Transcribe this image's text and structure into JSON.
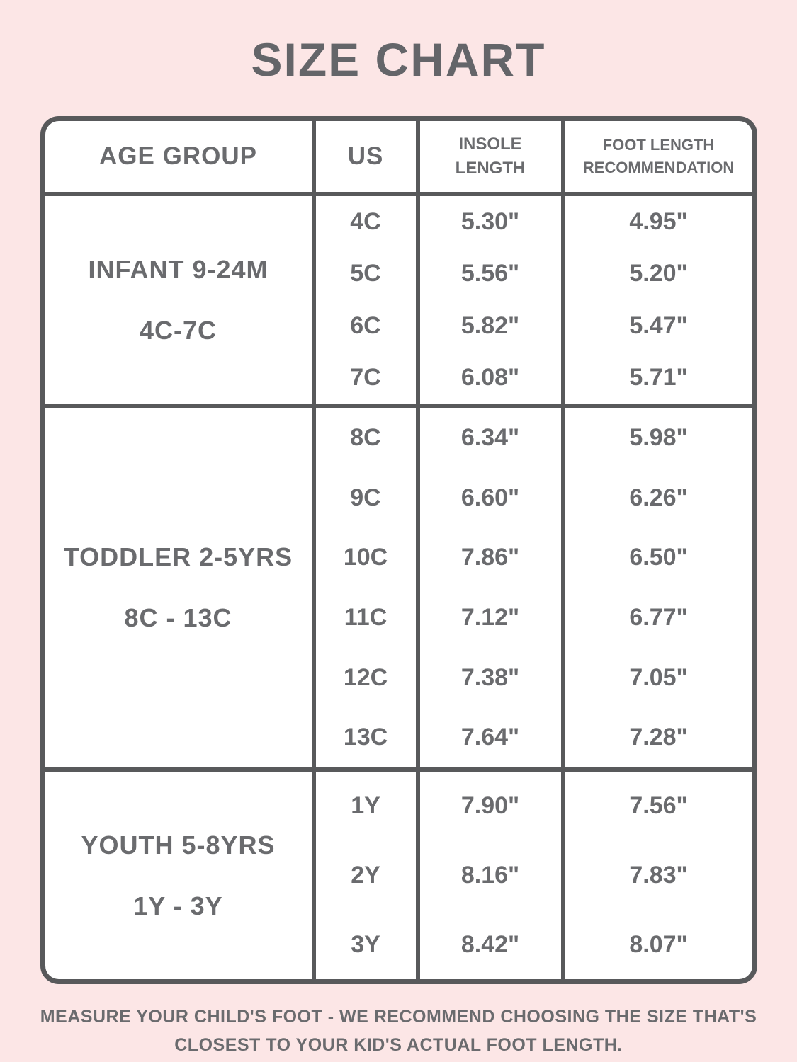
{
  "chart_data": {
    "type": "table",
    "title": "SIZE CHART",
    "columns": [
      "AGE GROUP",
      "US",
      "INSOLE LENGTH",
      "FOOT LENGTH RECOMMENDATION"
    ],
    "groups": [
      {
        "age_group": "INFANT 9-24M",
        "size_range": "4C-7C",
        "rows": [
          {
            "us": "4C",
            "insole_length": "5.30\"",
            "foot_length_recommendation": "4.95\""
          },
          {
            "us": "5C",
            "insole_length": "5.56\"",
            "foot_length_recommendation": "5.20\""
          },
          {
            "us": "6C",
            "insole_length": "5.82\"",
            "foot_length_recommendation": "5.47\""
          },
          {
            "us": "7C",
            "insole_length": "6.08\"",
            "foot_length_recommendation": "5.71\""
          }
        ]
      },
      {
        "age_group": "TODDLER 2-5YRS",
        "size_range": "8C - 13C",
        "rows": [
          {
            "us": "8C",
            "insole_length": "6.34\"",
            "foot_length_recommendation": "5.98\""
          },
          {
            "us": "9C",
            "insole_length": "6.60\"",
            "foot_length_recommendation": "6.26\""
          },
          {
            "us": "10C",
            "insole_length": "7.86\"",
            "foot_length_recommendation": "6.50\""
          },
          {
            "us": "11C",
            "insole_length": "7.12\"",
            "foot_length_recommendation": "6.77\""
          },
          {
            "us": "12C",
            "insole_length": "7.38\"",
            "foot_length_recommendation": "7.05\""
          },
          {
            "us": "13C",
            "insole_length": "7.64\"",
            "foot_length_recommendation": "7.28\""
          }
        ]
      },
      {
        "age_group": "YOUTH 5-8YRS",
        "size_range": "1Y - 3Y",
        "rows": [
          {
            "us": "1Y",
            "insole_length": "7.90\"",
            "foot_length_recommendation": "7.56\""
          },
          {
            "us": "2Y",
            "insole_length": "8.16\"",
            "foot_length_recommendation": "7.83\""
          },
          {
            "us": "3Y",
            "insole_length": "8.42\"",
            "foot_length_recommendation": "8.07\""
          }
        ]
      }
    ]
  },
  "footer": {
    "note": "MEASURE YOUR CHILD'S FOOT - WE RECOMMEND CHOOSING THE SIZE THAT'S CLOSEST TO YOUR KID'S ACTUAL FOOT LENGTH."
  },
  "colors": {
    "page_background": "#fce6e6",
    "table_background": "#ffffff",
    "border": "#58595b",
    "text": "#6a6b6e"
  }
}
